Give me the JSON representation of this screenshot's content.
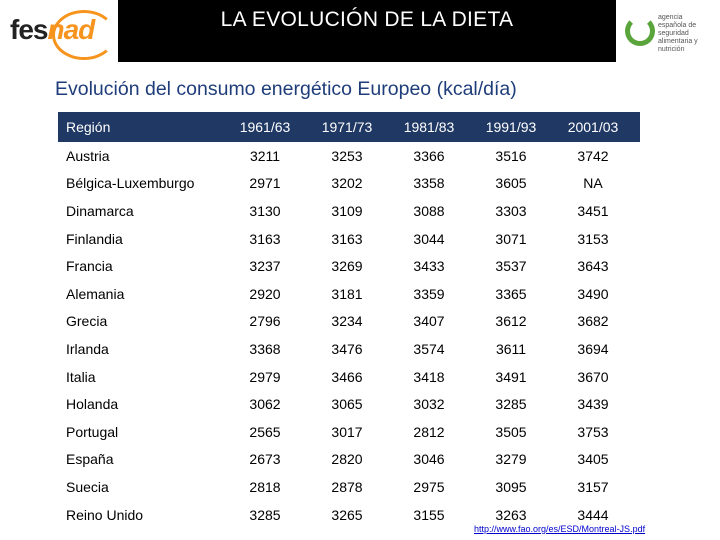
{
  "header": {
    "logo_left": {
      "part1": "fes",
      "part2": "nad"
    },
    "title": "LA EVOLUCIÓN DE LA DIETA",
    "logo_right": {
      "line1": "agencia",
      "line2": "española de",
      "line3": "seguridad",
      "line4": "alimentaria y",
      "line5": "nutrición"
    }
  },
  "subtitle": "Evolución del consumo energético Europeo (kcal/día)",
  "table": {
    "columns": [
      "Región",
      "1961/63",
      "1971/73",
      "1981/83",
      "1991/93",
      "2001/03"
    ],
    "rows": [
      [
        "Austria",
        "3211",
        "3253",
        "3366",
        "3516",
        "3742"
      ],
      [
        "Bélgica-Luxemburgo",
        "2971",
        "3202",
        "3358",
        "3605",
        "NA"
      ],
      [
        "Dinamarca",
        "3130",
        "3109",
        "3088",
        "3303",
        "3451"
      ],
      [
        "Finlandia",
        "3163",
        "3163",
        "3044",
        "3071",
        "3153"
      ],
      [
        "Francia",
        "3237",
        "3269",
        "3433",
        "3537",
        "3643"
      ],
      [
        "Alemania",
        "2920",
        "3181",
        "3359",
        "3365",
        "3490"
      ],
      [
        "Grecia",
        "2796",
        "3234",
        "3407",
        "3612",
        "3682"
      ],
      [
        "Irlanda",
        "3368",
        "3476",
        "3574",
        "3611",
        "3694"
      ],
      [
        "Italia",
        "2979",
        "3466",
        "3418",
        "3491",
        "3670"
      ],
      [
        "Holanda",
        "3062",
        "3065",
        "3032",
        "3285",
        "3439"
      ],
      [
        "Portugal",
        "2565",
        "3017",
        "2812",
        "3505",
        "3753"
      ],
      [
        "España",
        "2673",
        "2820",
        "3046",
        "3279",
        "3405"
      ],
      [
        "Suecia",
        "2818",
        "2878",
        "2975",
        "3095",
        "3157"
      ],
      [
        "Reino Unido",
        "3285",
        "3265",
        "3155",
        "3263",
        "3444"
      ]
    ]
  },
  "source_link": "http://www.fao.org/es/ESD/Montreal-JS.pdf",
  "colors": {
    "header_bg": "#1f3864",
    "title_bar": "#000000",
    "subtitle": "#1f3d7a",
    "brand_orange": "#f7941d",
    "brand_green": "#5aa53b"
  }
}
